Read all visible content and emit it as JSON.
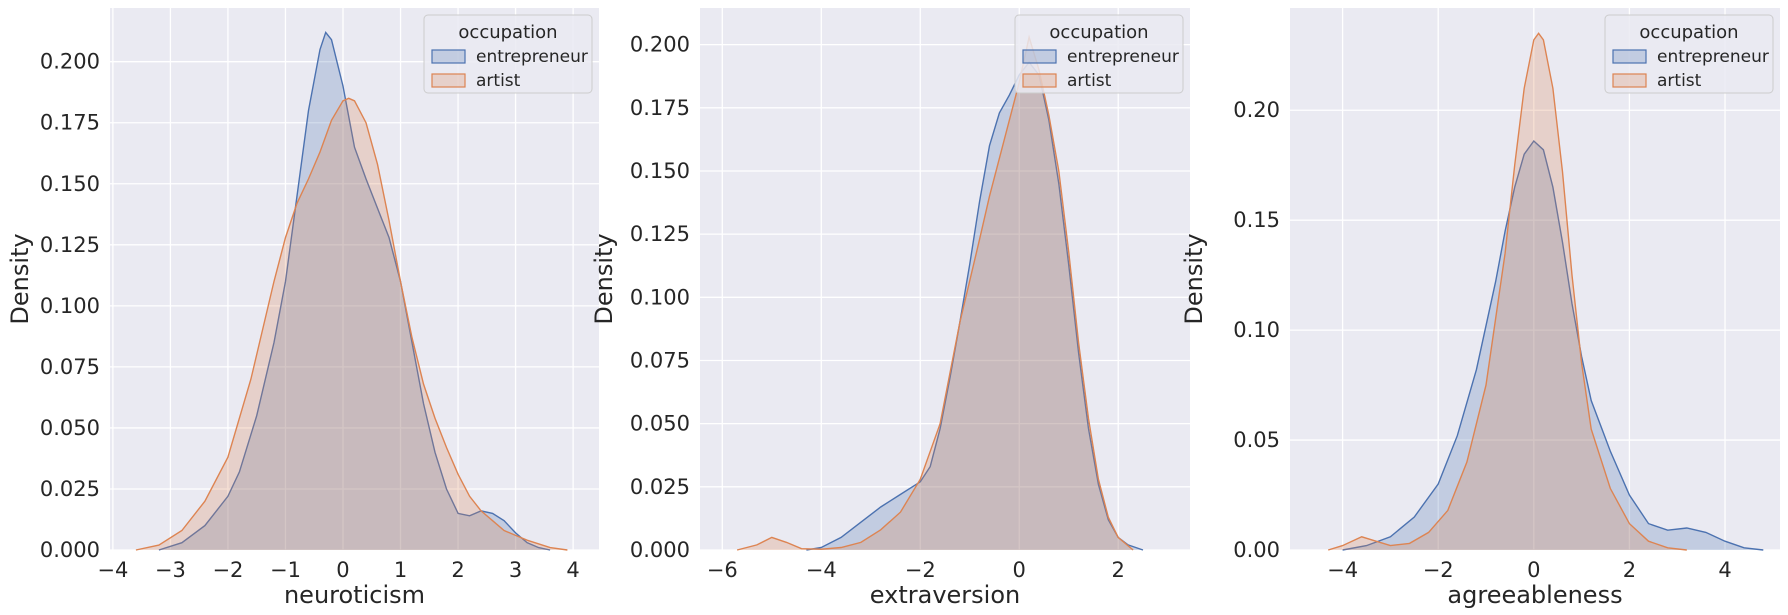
{
  "colors": {
    "background": "#EAEAF2",
    "grid": "#FFFFFF",
    "entrepreneur": "#4C72B0",
    "artist": "#DD8452",
    "text": "#262626"
  },
  "chart_data": [
    {
      "type": "area",
      "chart_kind": "kde",
      "xlabel": "neuroticism",
      "ylabel": "Density",
      "xlim": [
        -4.05,
        4.45
      ],
      "ylim": [
        0,
        0.222
      ],
      "xticks": [
        "−4",
        "−3",
        "−2",
        "−1",
        "0",
        "1",
        "2",
        "3",
        "4"
      ],
      "xtick_values": [
        -4,
        -3,
        -2,
        -1,
        0,
        1,
        2,
        3,
        4
      ],
      "yticks": [
        "0.000",
        "0.025",
        "0.050",
        "0.075",
        "0.100",
        "0.125",
        "0.150",
        "0.175",
        "0.200"
      ],
      "ytick_values": [
        0,
        0.025,
        0.05,
        0.075,
        0.1,
        0.125,
        0.15,
        0.175,
        0.2
      ],
      "grid": true,
      "legend": {
        "title": "occupation",
        "position": "upper right",
        "entries": [
          "entrepreneur",
          "artist"
        ]
      },
      "series": [
        {
          "name": "entrepreneur",
          "x": [
            -3.2,
            -2.8,
            -2.4,
            -2.0,
            -1.8,
            -1.5,
            -1.2,
            -1.0,
            -0.8,
            -0.6,
            -0.4,
            -0.3,
            -0.2,
            0.0,
            0.2,
            0.4,
            0.6,
            0.8,
            1.0,
            1.2,
            1.4,
            1.6,
            1.8,
            2.0,
            2.2,
            2.4,
            2.6,
            2.8,
            3.0,
            3.2,
            3.4,
            3.6
          ],
          "y": [
            0.0,
            0.003,
            0.01,
            0.022,
            0.032,
            0.055,
            0.085,
            0.11,
            0.145,
            0.18,
            0.205,
            0.212,
            0.209,
            0.19,
            0.165,
            0.152,
            0.14,
            0.128,
            0.11,
            0.085,
            0.06,
            0.04,
            0.025,
            0.015,
            0.014,
            0.016,
            0.015,
            0.012,
            0.007,
            0.003,
            0.001,
            0.0
          ]
        },
        {
          "name": "artist",
          "x": [
            -3.6,
            -3.2,
            -2.8,
            -2.4,
            -2.0,
            -1.6,
            -1.2,
            -1.0,
            -0.8,
            -0.6,
            -0.4,
            -0.2,
            0.0,
            0.1,
            0.2,
            0.4,
            0.6,
            0.8,
            1.0,
            1.2,
            1.4,
            1.6,
            1.8,
            2.0,
            2.2,
            2.4,
            2.6,
            2.8,
            3.0,
            3.2,
            3.6,
            3.9
          ],
          "y": [
            0.0,
            0.002,
            0.008,
            0.02,
            0.038,
            0.07,
            0.11,
            0.128,
            0.142,
            0.152,
            0.163,
            0.176,
            0.184,
            0.185,
            0.184,
            0.175,
            0.158,
            0.135,
            0.11,
            0.087,
            0.068,
            0.054,
            0.042,
            0.031,
            0.022,
            0.016,
            0.012,
            0.008,
            0.006,
            0.004,
            0.001,
            0.0
          ]
        }
      ]
    },
    {
      "type": "area",
      "chart_kind": "kde",
      "xlabel": "extraversion",
      "ylabel": "Density",
      "xlim": [
        -6.45,
        3.45
      ],
      "ylim": [
        0,
        0.2145
      ],
      "xticks": [
        "−6",
        "−4",
        "−2",
        "0",
        "2"
      ],
      "xtick_values": [
        -6,
        -4,
        -2,
        0,
        2
      ],
      "yticks": [
        "0.000",
        "0.025",
        "0.050",
        "0.075",
        "0.100",
        "0.125",
        "0.150",
        "0.175",
        "0.200"
      ],
      "ytick_values": [
        0,
        0.025,
        0.05,
        0.075,
        0.1,
        0.125,
        0.15,
        0.175,
        0.2
      ],
      "grid": true,
      "legend": {
        "title": "occupation",
        "position": "upper right",
        "entries": [
          "entrepreneur",
          "artist"
        ]
      },
      "series": [
        {
          "name": "entrepreneur",
          "x": [
            -4.3,
            -4.0,
            -3.6,
            -3.2,
            -2.8,
            -2.4,
            -2.0,
            -1.8,
            -1.6,
            -1.4,
            -1.2,
            -1.0,
            -0.8,
            -0.6,
            -0.4,
            -0.2,
            0.0,
            0.2,
            0.4,
            0.6,
            0.8,
            1.0,
            1.2,
            1.4,
            1.6,
            1.8,
            2.0,
            2.2,
            2.5
          ],
          "y": [
            0.0,
            0.001,
            0.005,
            0.011,
            0.017,
            0.022,
            0.027,
            0.033,
            0.048,
            0.068,
            0.09,
            0.113,
            0.138,
            0.16,
            0.173,
            0.18,
            0.188,
            0.193,
            0.188,
            0.17,
            0.145,
            0.113,
            0.078,
            0.048,
            0.026,
            0.012,
            0.005,
            0.002,
            0.0
          ]
        },
        {
          "name": "artist",
          "x": [
            -5.7,
            -5.3,
            -5.0,
            -4.7,
            -4.4,
            -4.0,
            -3.6,
            -3.2,
            -2.8,
            -2.4,
            -2.0,
            -1.6,
            -1.2,
            -0.8,
            -0.6,
            -0.4,
            -0.2,
            0.0,
            0.2,
            0.4,
            0.6,
            0.8,
            1.0,
            1.2,
            1.4,
            1.6,
            1.8,
            2.0,
            2.3
          ],
          "y": [
            0.0,
            0.002,
            0.005,
            0.003,
            0.0005,
            0.0003,
            0.001,
            0.003,
            0.008,
            0.015,
            0.028,
            0.05,
            0.09,
            0.123,
            0.14,
            0.155,
            0.17,
            0.185,
            0.203,
            0.19,
            0.172,
            0.15,
            0.118,
            0.082,
            0.052,
            0.028,
            0.013,
            0.005,
            0.0
          ]
        }
      ]
    },
    {
      "type": "area",
      "chart_kind": "kde",
      "xlabel": "agreeableness",
      "ylabel": "Density",
      "xlim": [
        -5.1,
        5.15
      ],
      "ylim": [
        0,
        0.2465
      ],
      "xticks": [
        "−4",
        "−2",
        "0",
        "2",
        "4"
      ],
      "xtick_values": [
        -4,
        -2,
        0,
        2,
        4
      ],
      "yticks": [
        "0.00",
        "0.05",
        "0.10",
        "0.15",
        "0.20"
      ],
      "ytick_values": [
        0,
        0.05,
        0.1,
        0.15,
        0.2
      ],
      "grid": true,
      "legend": {
        "title": "occupation",
        "position": "upper right",
        "entries": [
          "entrepreneur",
          "artist"
        ]
      },
      "series": [
        {
          "name": "entrepreneur",
          "x": [
            -4.0,
            -3.5,
            -3.0,
            -2.5,
            -2.0,
            -1.6,
            -1.2,
            -0.8,
            -0.6,
            -0.4,
            -0.2,
            0.0,
            0.2,
            0.4,
            0.6,
            0.8,
            1.0,
            1.2,
            1.6,
            2.0,
            2.4,
            2.8,
            3.2,
            3.6,
            4.0,
            4.4,
            4.8
          ],
          "y": [
            0.0,
            0.002,
            0.006,
            0.015,
            0.03,
            0.052,
            0.082,
            0.122,
            0.145,
            0.165,
            0.18,
            0.186,
            0.182,
            0.165,
            0.14,
            0.112,
            0.088,
            0.068,
            0.045,
            0.025,
            0.012,
            0.009,
            0.01,
            0.008,
            0.004,
            0.001,
            0.0
          ]
        },
        {
          "name": "artist",
          "x": [
            -4.3,
            -4.0,
            -3.6,
            -3.3,
            -3.0,
            -2.6,
            -2.2,
            -1.8,
            -1.4,
            -1.0,
            -0.6,
            -0.4,
            -0.2,
            0.0,
            0.1,
            0.2,
            0.4,
            0.6,
            0.8,
            1.0,
            1.2,
            1.6,
            2.0,
            2.4,
            2.8,
            3.2
          ],
          "y": [
            0.0,
            0.002,
            0.006,
            0.004,
            0.002,
            0.003,
            0.008,
            0.018,
            0.04,
            0.075,
            0.135,
            0.175,
            0.21,
            0.232,
            0.235,
            0.232,
            0.21,
            0.172,
            0.125,
            0.085,
            0.055,
            0.028,
            0.012,
            0.004,
            0.001,
            0.0
          ]
        }
      ]
    }
  ]
}
